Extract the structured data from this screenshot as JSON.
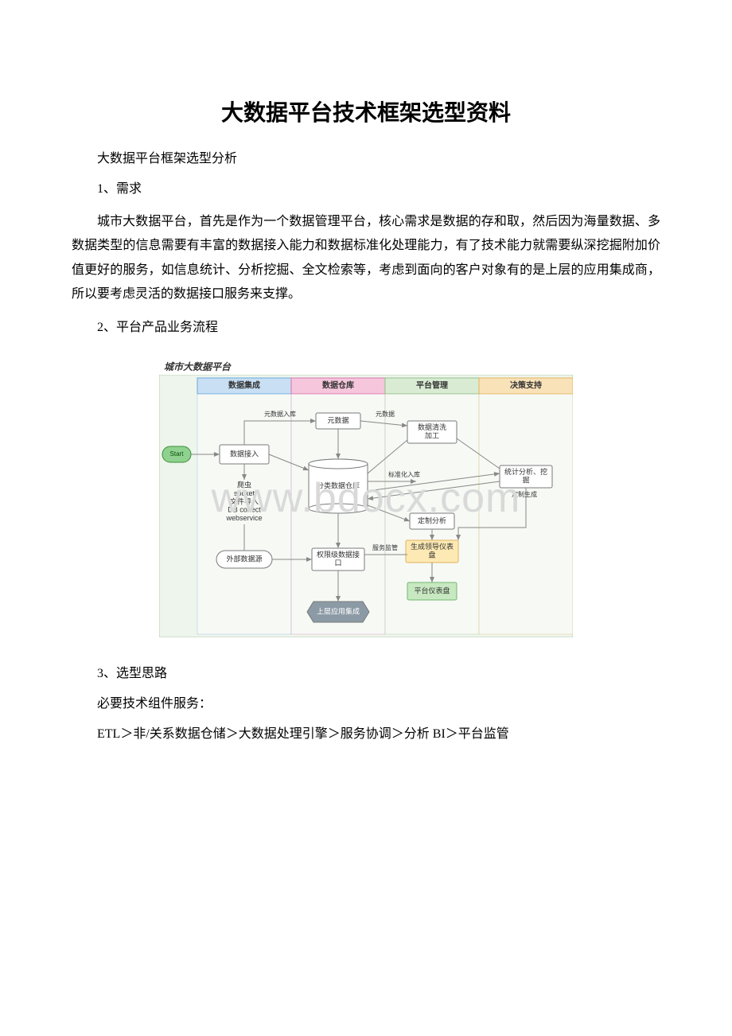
{
  "doc": {
    "title": "大数据平台技术框架选型资料",
    "subtitle": "大数据平台框架选型分析",
    "s1_heading": "1、需求",
    "s1_body": "城市大数据平台，首先是作为一个数据管理平台，核心需求是数据的存和取，然后因为海量数据、多数据类型的信息需要有丰富的数据接入能力和数据标准化处理能力，有了技术能力就需要纵深挖掘附加价值更好的服务，如信息统计、分析挖掘、全文检索等，考虑到面向的客户对象有的是上层的应用集成商，所以要考虑灵活的数据接口服务来支撑。",
    "s2_heading": "2、平台产品业务流程",
    "s3_heading": "3、选型思路",
    "s3_line": "必要技术组件服务：",
    "s3_chain": "ETL＞非/关系数据仓储＞大数据处理引擎＞服务协调＞分析 BI＞平台监管"
  },
  "watermark": "www.bdocx.com",
  "flow": {
    "platform_label": "城市大数据平台",
    "outer_bg": "#eef5ec",
    "columns": [
      {
        "label": "数据集成",
        "fill": "#c8dff4",
        "stroke": "#6aa9de"
      },
      {
        "label": "数据仓库",
        "fill": "#f5c6dc",
        "stroke": "#d977ad"
      },
      {
        "label": "平台管理",
        "fill": "#d9ecd3",
        "stroke": "#8fc08a"
      },
      {
        "label": "决策支持",
        "fill": "#f9e2b8",
        "stroke": "#e2b45a"
      }
    ],
    "col_header_fontsize": 10,
    "node_fontsize": 9,
    "edge_fontsize": 8,
    "start": {
      "label": "Start",
      "fill": "#8fd18f",
      "stroke": "#3c8f3c"
    },
    "nodes": {
      "ingest": {
        "label": "数据接入",
        "type": "rect"
      },
      "extsrc": {
        "label": "外部数据源",
        "type": "round"
      },
      "crawl": {
        "label": "爬虫\nsocket\n文件导入\nDB conect\nwebservice",
        "type": "text"
      },
      "meta": {
        "label": "元数据",
        "type": "rect"
      },
      "warehouse": {
        "label": "分类数据仓库",
        "type": "cyl"
      },
      "api": {
        "label": "权限级数据接\n口",
        "type": "rect"
      },
      "integ": {
        "label": "上层应用集成",
        "type": "hex",
        "fill": "#8c9aa6",
        "text": "#ffffff"
      },
      "clean": {
        "label": "数据清洗\n加工",
        "type": "rect"
      },
      "custom": {
        "label": "定制分析",
        "type": "rect"
      },
      "dash": {
        "label": "平台仪表盘",
        "type": "rect",
        "fill": "#c7e8c0",
        "stroke": "#6fb96f"
      },
      "stat": {
        "label": "统计分析、挖\n掘",
        "type": "rect"
      },
      "gendash": {
        "label": "生成领导仪表\n盘",
        "type": "rect",
        "fill": "#fde9b3",
        "stroke": "#e2b45a"
      }
    },
    "edges": [
      {
        "label": "元数据入库"
      },
      {
        "label": "元数据"
      },
      {
        "label": "标准化入库"
      },
      {
        "label": "服务监管"
      },
      {
        "label": "定制生成"
      }
    ],
    "colors": {
      "node_fill": "#ffffff",
      "node_stroke": "#7a7a7a",
      "edge": "#888888",
      "text": "#333333"
    }
  }
}
